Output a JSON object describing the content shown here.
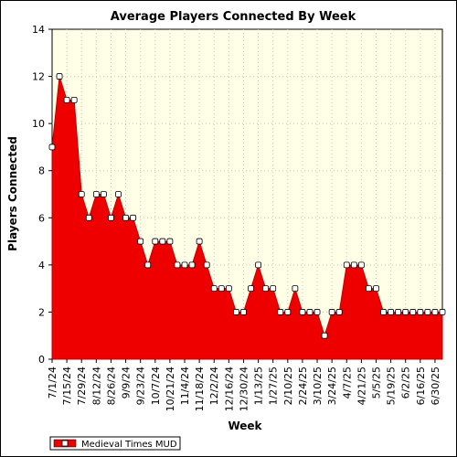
{
  "colors": {
    "plot_background": "#ffffe8",
    "area_fill": "#ee0000",
    "area_edge": "#c00000",
    "grid": "#c8c8a8",
    "marker_fill": "#ffffff"
  },
  "chart_data": {
    "type": "area",
    "title": "Average Players Connected By Week",
    "xlabel": "Week",
    "ylabel": "Players Connected",
    "ylim": [
      0,
      14
    ],
    "yticks": [
      0,
      2,
      4,
      6,
      8,
      10,
      12,
      14
    ],
    "grid": true,
    "legend_position": "bottom-left",
    "x_tick_labels": [
      "7/1/24",
      "7/15/24",
      "7/29/24",
      "8/12/24",
      "8/26/24",
      "9/9/24",
      "9/23/24",
      "10/7/24",
      "10/21/24",
      "11/4/24",
      "11/18/24",
      "12/2/24",
      "12/16/24",
      "12/30/24",
      "1/13/25",
      "1/27/25",
      "2/10/25",
      "2/24/25",
      "3/10/25",
      "3/24/25",
      "4/7/25",
      "4/21/25",
      "5/5/25",
      "5/19/25",
      "6/2/25",
      "6/16/25",
      "6/30/25"
    ],
    "series": [
      {
        "name": "Medieval Times MUD",
        "values": [
          9,
          12,
          11,
          11,
          7,
          6,
          7,
          7,
          6,
          7,
          6,
          6,
          5,
          4,
          5,
          5,
          5,
          4,
          4,
          4,
          5,
          4,
          3,
          3,
          3,
          2,
          2,
          3,
          4,
          3,
          3,
          2,
          2,
          3,
          2,
          2,
          2,
          1,
          2,
          2,
          4,
          4,
          4,
          3,
          3,
          2,
          2,
          2,
          2,
          2,
          2,
          2,
          2,
          2
        ]
      }
    ]
  }
}
